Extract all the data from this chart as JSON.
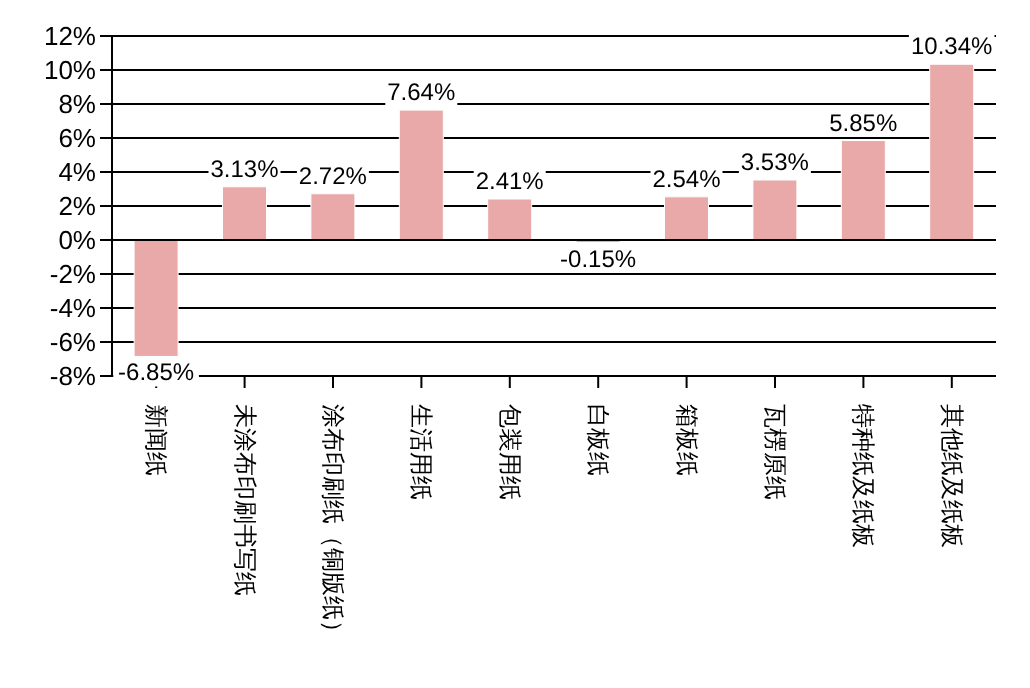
{
  "chart_data": {
    "type": "bar",
    "categories": [
      "新闻纸",
      "未涂布印刷书写纸",
      "涂布印刷纸（铜版纸）",
      "生活用纸",
      "包装用纸",
      "白板纸",
      "箱板纸",
      "瓦楞原纸",
      "特种纸及纸板",
      "其他纸及纸板"
    ],
    "values": [
      -6.85,
      3.13,
      2.72,
      7.64,
      2.41,
      -0.15,
      2.54,
      3.53,
      5.85,
      10.34
    ],
    "value_labels": [
      "-6.85%",
      "3.13%",
      "2.72%",
      "7.64%",
      "2.41%",
      "-0.15%",
      "2.54%",
      "3.53%",
      "5.85%",
      "10.34%"
    ],
    "color": "#e8a9a8",
    "ylim": [
      -8,
      12
    ],
    "yticks": [
      {
        "value": -8,
        "label": "-8%"
      },
      {
        "value": -6,
        "label": "-6%"
      },
      {
        "value": -4,
        "label": "-4%"
      },
      {
        "value": -2,
        "label": "-2%"
      },
      {
        "value": 0,
        "label": "0%"
      },
      {
        "value": 2,
        "label": "2%"
      },
      {
        "value": 4,
        "label": "4%"
      },
      {
        "value": 6,
        "label": "6%"
      },
      {
        "value": 8,
        "label": "8%"
      },
      {
        "value": 10,
        "label": "10%"
      },
      {
        "value": 12,
        "label": "12%"
      }
    ],
    "grid": "y",
    "legend": false
  }
}
